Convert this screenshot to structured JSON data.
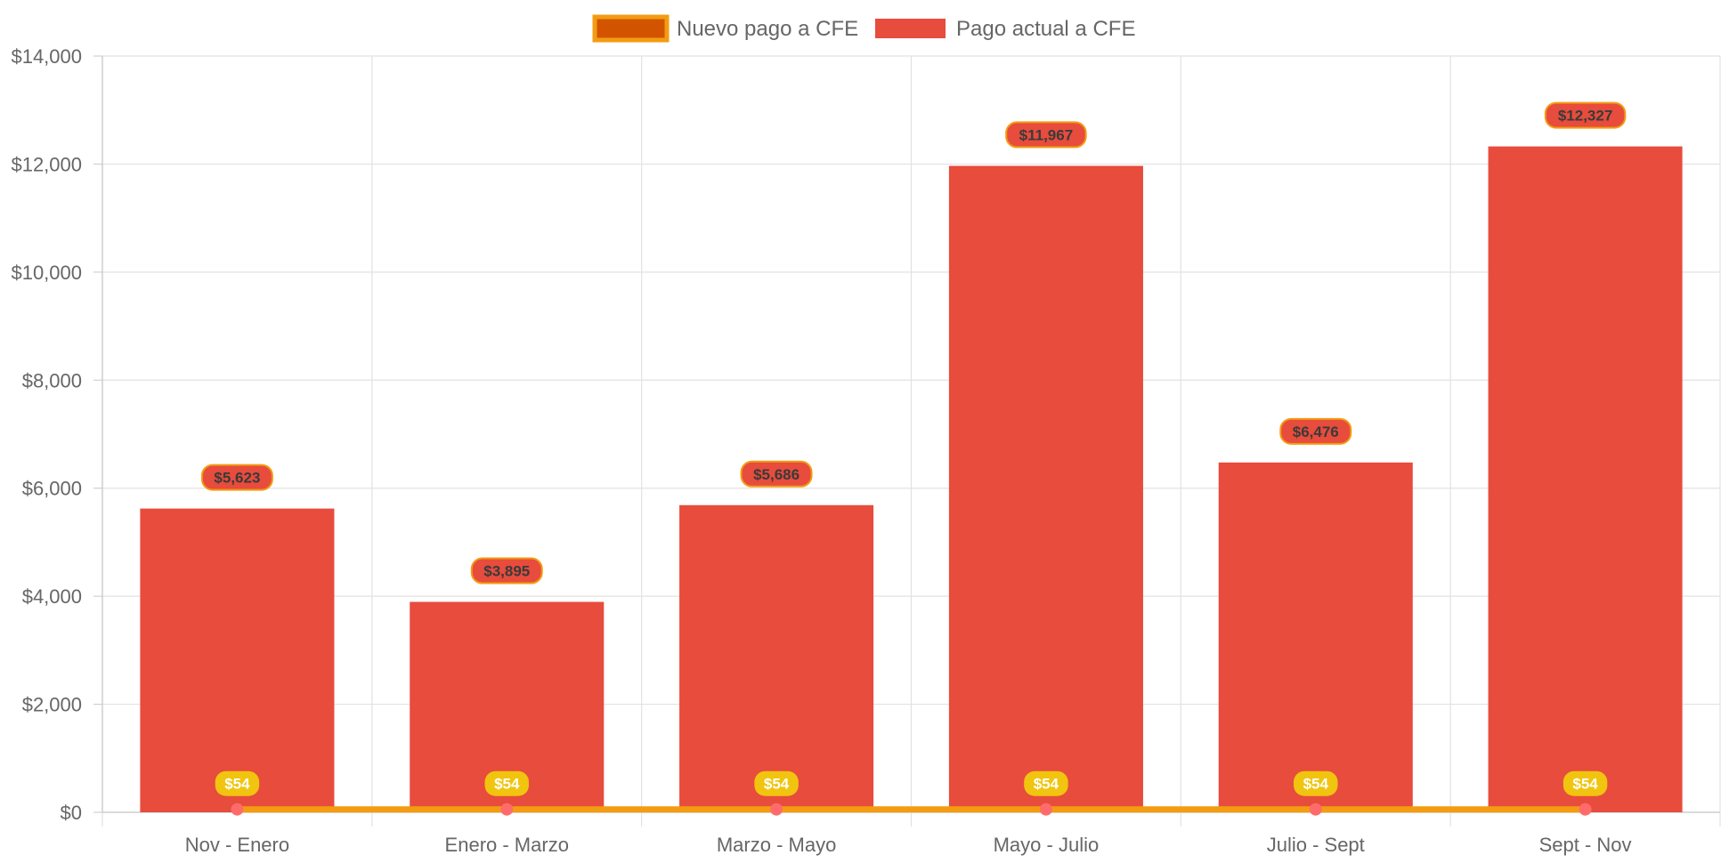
{
  "chart_data": {
    "type": "bar",
    "categories": [
      "Nov - Enero",
      "Enero - Marzo",
      "Marzo - Mayo",
      "Mayo - Julio",
      "Julio - Sept",
      "Sept - Nov"
    ],
    "series": [
      {
        "name": "Nuevo pago a CFE",
        "type": "line",
        "values": [
          54,
          54,
          54,
          54,
          54,
          54
        ],
        "labels": [
          "$54",
          "$54",
          "$54",
          "$54",
          "$54",
          "$54"
        ],
        "color": "#f39c12",
        "fill_color": "#d35400",
        "point_color": "#ff6b6b",
        "label_bg": "#f1c40f"
      },
      {
        "name": "Pago actual a CFE",
        "type": "bar",
        "values": [
          5623,
          3895,
          5686,
          11967,
          6476,
          12327
        ],
        "labels": [
          "$5,623",
          "$3,895",
          "$5,686",
          "$11,967",
          "$6,476",
          "$12,327"
        ],
        "color": "#e74c3c",
        "label_border": "#f39c12"
      }
    ],
    "y_ticks": [
      {
        "value": 0,
        "label": "$0"
      },
      {
        "value": 2000,
        "label": "$2,000"
      },
      {
        "value": 4000,
        "label": "$4,000"
      },
      {
        "value": 6000,
        "label": "$6,000"
      },
      {
        "value": 8000,
        "label": "$8,000"
      },
      {
        "value": 10000,
        "label": "$10,000"
      },
      {
        "value": 12000,
        "label": "$12,000"
      },
      {
        "value": 14000,
        "label": "$14,000"
      }
    ],
    "ylim": [
      0,
      14000
    ],
    "grid": true,
    "legend_position": "top-center",
    "title": "",
    "xlabel": "",
    "ylabel": ""
  }
}
